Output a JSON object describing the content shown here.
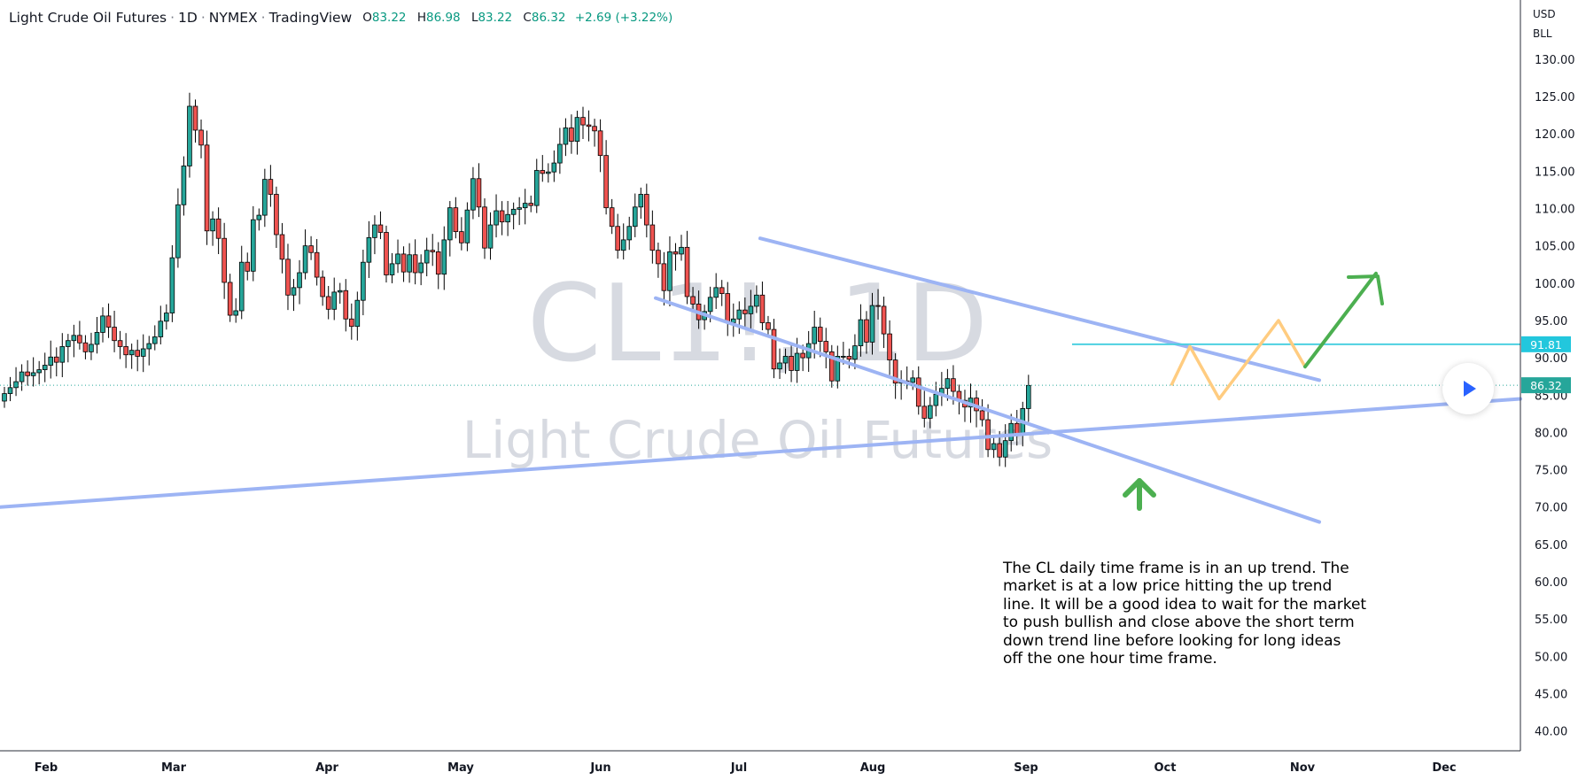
{
  "header": {
    "symbol_name": "Light Crude Oil Futures",
    "interval": "1D",
    "exchange": "NYMEX",
    "platform": "TradingView",
    "open_label": "O",
    "open": "83.22",
    "high_label": "H",
    "high": "86.98",
    "low_label": "L",
    "low": "83.22",
    "close_label": "C",
    "close": "86.32",
    "change": "+2.69 (+3.22%)"
  },
  "watermark": {
    "symbol": "CL1!, 1D",
    "description": "Light Crude Oil Futures"
  },
  "price_axis": {
    "currency": "USD",
    "unit": "BLL"
  },
  "price_badges": {
    "current": "86.32",
    "level": "91.81"
  },
  "annotation_text": "The CL daily time frame is in an up trend. The\nmarket is at a low price hitting the up trend\nline. It will be a good idea to wait for the market\nto push bullish and close above the short term\ndown trend line before looking for long ideas\noff the one hour time frame.",
  "colors": {
    "up": "#26a69a",
    "down": "#ef5350",
    "trendline": "#9db4f4",
    "level": "#4dd0e1",
    "projection": "#ffcc80",
    "arrow": "#4caf50",
    "badge_current": "#26a69a",
    "badge_level": "#22c7dd"
  },
  "chart_data": {
    "type": "candlestick",
    "x_ticks": [
      "Feb",
      "Mar",
      "Apr",
      "May",
      "Jun",
      "Jul",
      "Aug",
      "Sep",
      "Oct",
      "Nov",
      "Dec"
    ],
    "y_ticks": [
      "130.00",
      "125.00",
      "120.00",
      "115.00",
      "110.00",
      "105.00",
      "100.00",
      "95.00",
      "90.00",
      "85.00",
      "80.00",
      "75.00",
      "70.00",
      "65.00",
      "60.00",
      "55.00",
      "50.00",
      "45.00",
      "40.00"
    ],
    "ylim": [
      37,
      133
    ],
    "series": [
      {
        "name": "CL1!",
        "close": [
          85.2,
          86.0,
          86.8,
          88.1,
          87.6,
          88.0,
          88.4,
          89.0,
          90.1,
          89.4,
          91.5,
          92.3,
          93.0,
          92.0,
          90.8,
          91.8,
          93.4,
          95.6,
          94.1,
          92.3,
          91.5,
          90.4,
          91.0,
          90.2,
          91.2,
          91.9,
          92.8,
          94.9,
          96.0,
          103.4,
          110.5,
          115.7,
          123.7,
          120.5,
          118.5,
          107.0,
          108.6,
          106.0,
          100.1,
          95.7,
          96.3,
          102.8,
          101.6,
          108.5,
          109.1,
          113.9,
          111.9,
          106.5,
          103.2,
          98.4,
          99.4,
          101.4,
          105.0,
          104.1,
          100.8,
          98.2,
          96.5,
          98.8,
          99.0,
          95.2,
          94.2,
          97.7,
          102.8,
          106.1,
          107.8,
          106.8,
          101.1,
          102.6,
          103.9,
          101.5,
          103.8,
          101.4,
          102.7,
          104.4,
          104.2,
          101.2,
          105.8,
          110.1,
          106.9,
          105.4,
          109.8,
          114.0,
          110.2,
          104.7,
          107.8,
          109.7,
          108.2,
          109.2,
          109.9,
          110.1,
          110.7,
          110.4,
          115.1,
          114.7,
          114.9,
          116.1,
          118.6,
          120.8,
          119.0,
          122.2,
          121.2,
          121.0,
          120.4,
          117.1,
          110.1,
          107.6,
          104.4,
          105.8,
          107.6,
          110.2,
          111.9,
          107.8,
          104.4,
          102.6,
          99.0,
          104.2,
          103.9,
          104.8,
          98.2,
          97.2,
          95.1,
          96.2,
          98.1,
          99.4,
          98.6,
          94.7,
          95.2,
          96.4,
          95.9,
          96.9,
          98.4,
          94.7,
          93.8,
          88.5,
          89.3,
          90.2,
          88.3,
          90.6,
          90.0,
          91.9,
          94.1,
          92.2,
          90.8,
          86.9,
          90.2,
          90.2,
          89.8,
          91.6,
          95.1,
          92.1,
          97.0,
          96.9,
          93.2,
          89.7,
          86.6,
          86.9,
          86.7,
          87.3,
          83.5,
          81.9,
          83.6,
          85.1,
          85.9,
          87.2,
          85.5,
          84.3,
          83.4,
          84.6,
          82.9,
          81.7,
          77.7,
          78.5,
          76.7,
          78.9,
          81.2,
          79.8,
          83.2,
          86.3
        ]
      }
    ],
    "trendlines": [
      {
        "name": "up trend line",
        "points": [
          [
            "Jan 10",
            70.0
          ],
          [
            "Dec 25",
            84.5
          ]
        ]
      },
      {
        "name": "down trend line (upper)",
        "points": [
          [
            "Jul 1",
            106.0
          ],
          [
            "Nov 5",
            87.0
          ]
        ]
      },
      {
        "name": "down trend line (lower)",
        "points": [
          [
            "Jun 14",
            98.0
          ],
          [
            "Nov 5",
            68.0
          ]
        ]
      }
    ],
    "horizontal_levels": [
      {
        "value": 91.81
      }
    ],
    "projection": [
      [
        86.3,
        91.5
      ],
      [
        84.5
      ],
      [
        95.0
      ],
      [
        88.8
      ],
      [
        101.5
      ]
    ],
    "last_price": 86.32
  }
}
